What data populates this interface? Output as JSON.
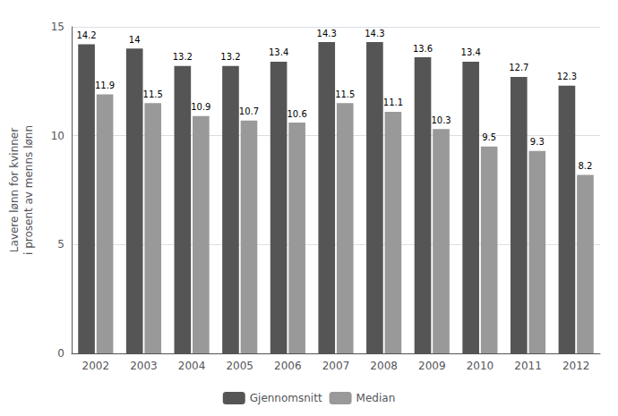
{
  "chart_data": {
    "type": "bar",
    "categories": [
      "2002",
      "2003",
      "2004",
      "2005",
      "2006",
      "2007",
      "2008",
      "2009",
      "2010",
      "2011",
      "2012"
    ],
    "series": [
      {
        "name": "Gjennomsnitt",
        "color": "#555555",
        "values": [
          14.2,
          14,
          13.2,
          13.2,
          13.4,
          14.3,
          14.3,
          13.6,
          13.4,
          12.7,
          12.3
        ]
      },
      {
        "name": "Median",
        "color": "#999999",
        "values": [
          11.9,
          11.5,
          10.9,
          10.7,
          10.6,
          11.5,
          11.1,
          10.3,
          9.5,
          9.3,
          8.2
        ]
      }
    ],
    "ylabel": "Lavere lønn for kvinner\ni prosent av menns lønn",
    "ylim": [
      0,
      15
    ],
    "yticks": [
      0,
      5,
      10,
      15
    ],
    "grid": true,
    "legend": "bottom",
    "data_labels": true
  }
}
